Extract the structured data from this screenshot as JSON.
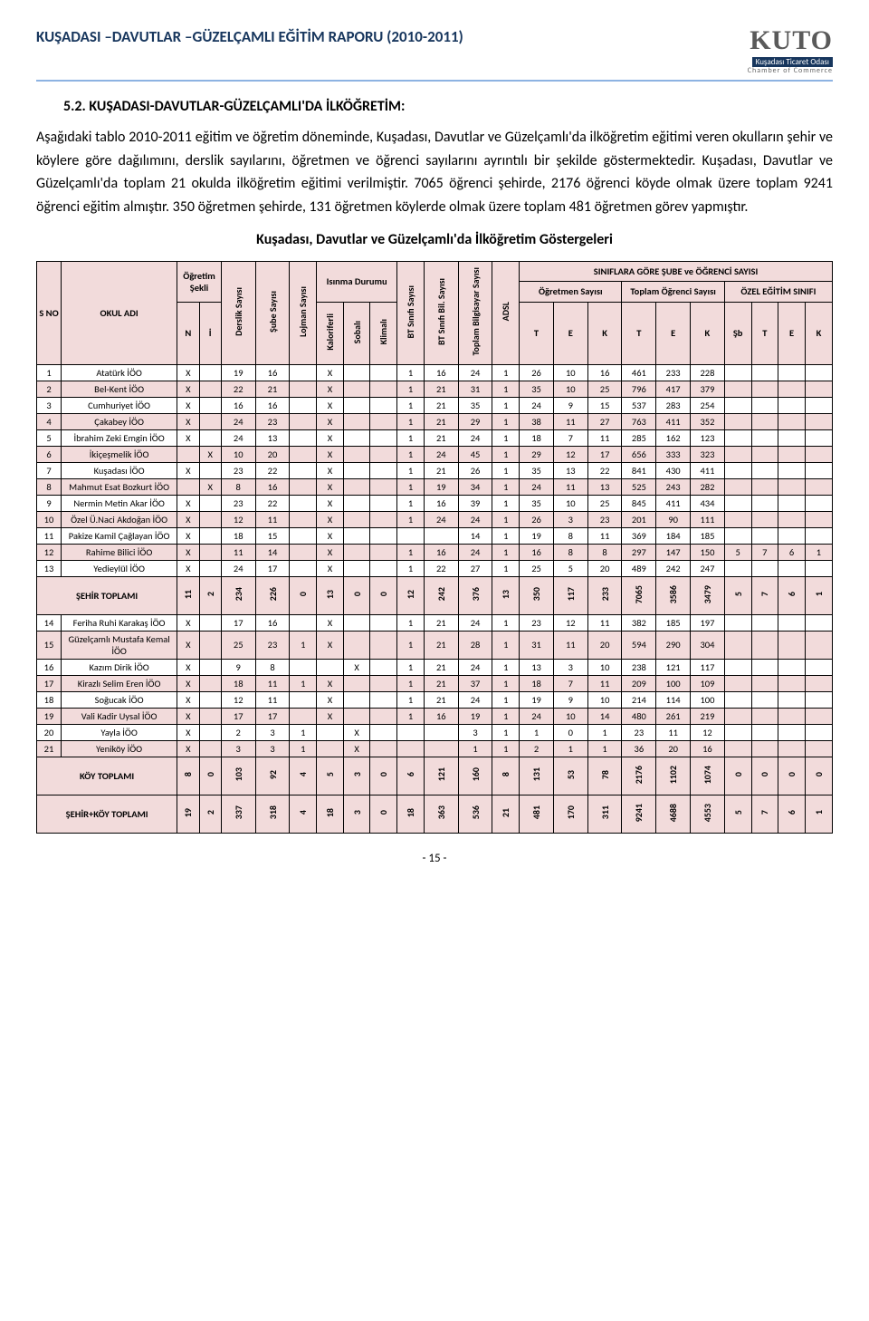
{
  "header": {
    "doc_title": "KUŞADASI –DAVUTLAR –GÜZELÇAMLI EĞİTİM RAPORU (2010-2011)",
    "logo_main": "KUTO",
    "logo_sub": "Kuşadası Ticaret Odası",
    "logo_sub2": "Chamber of Commerce",
    "title_color": "#17365d",
    "rule_color": "#8db3e2"
  },
  "section_heading": "5.2. KUŞADASI-DAVUTLAR-GÜZELÇAMLI'DA İLKÖĞRETİM:",
  "paragraphs": [
    "Aşağıdaki tablo 2010-2011 eğitim ve öğretim döneminde, Kuşadası, Davutlar ve Güzelçamlı'da ilköğretim eğitimi veren okulların şehir ve köylere göre dağılımını, derslik sayılarını, öğretmen ve öğrenci sayılarını ayrıntılı bir şekilde göstermektedir. Kuşadası, Davutlar ve Güzelçamlı'da toplam 21 okulda ilköğretim eğitimi verilmiştir. 7065 öğrenci şehirde, 2176 öğrenci köyde olmak üzere toplam 9241 öğrenci eğitim almıştır. 350 öğretmen şehirde, 131 öğretmen köylerde olmak üzere toplam 481 öğretmen görev yapmıştır."
  ],
  "chart_title": "Kuşadası, Davutlar ve Güzelçamlı'da İlköğretim Göstergeleri",
  "table": {
    "header_bg": "#f2dbdb",
    "pink_bg": "#f2dbdb",
    "top_headers": {
      "s_no": "S NO",
      "okul_adi": "OKUL ADI",
      "ogretim_sekli": "Öğretim Şekli",
      "derslik": "Derslik Sayısı",
      "sube": "Şube Sayısı",
      "lojman": "Lojman Sayısı",
      "isinma": "Isınma Durumu",
      "bt_sinifi": "BT Sınıfı Sayısı",
      "bt_bil": "BT Sınıfı Bil. Sayısı",
      "toplam_bilg": "Toplam Bilgisayar Sayısı",
      "adsl": "ADSL",
      "siniflara": "SINIFLARA GÖRE ŞUBE ve ÖĞRENCİ SAYISI",
      "ogretmen": "Öğretmen Sayısı",
      "toplam_ogr": "Toplam Öğrenci Sayısı",
      "ozel": "ÖZEL EĞİTİM SINIFI"
    },
    "sub_headers": {
      "N": "N",
      "I": "İ",
      "kaloriferli": "Kaloriferli",
      "sobali": "Sobalı",
      "klimali": "Klimalı",
      "T": "T",
      "E": "E",
      "K": "K",
      "Sb": "Şb"
    },
    "rows": [
      {
        "pink": false,
        "n": "1",
        "name": "Atatürk İÖO",
        "N": "X",
        "I": "",
        "d": "19",
        "s": "16",
        "l": "",
        "kf": "X",
        "so": "",
        "kl": "",
        "bt": "1",
        "btb": "16",
        "tb": "24",
        "ad": "1",
        "oT": "26",
        "oE": "10",
        "oK": "16",
        "tT": "461",
        "tE": "233",
        "tK": "228",
        "zSb": "",
        "zT": "",
        "zE": "",
        "zK": ""
      },
      {
        "pink": true,
        "n": "2",
        "name": "Bel-Kent İÖO",
        "N": "X",
        "I": "",
        "d": "22",
        "s": "21",
        "l": "",
        "kf": "X",
        "so": "",
        "kl": "",
        "bt": "1",
        "btb": "21",
        "tb": "31",
        "ad": "1",
        "oT": "35",
        "oE": "10",
        "oK": "25",
        "tT": "796",
        "tE": "417",
        "tK": "379",
        "zSb": "",
        "zT": "",
        "zE": "",
        "zK": ""
      },
      {
        "pink": false,
        "n": "3",
        "name": "Cumhuriyet İÖO",
        "N": "X",
        "I": "",
        "d": "16",
        "s": "16",
        "l": "",
        "kf": "X",
        "so": "",
        "kl": "",
        "bt": "1",
        "btb": "21",
        "tb": "35",
        "ad": "1",
        "oT": "24",
        "oE": "9",
        "oK": "15",
        "tT": "537",
        "tE": "283",
        "tK": "254",
        "zSb": "",
        "zT": "",
        "zE": "",
        "zK": ""
      },
      {
        "pink": true,
        "n": "4",
        "name": "Çakabey İÖO",
        "N": "X",
        "I": "",
        "d": "24",
        "s": "23",
        "l": "",
        "kf": "X",
        "so": "",
        "kl": "",
        "bt": "1",
        "btb": "21",
        "tb": "29",
        "ad": "1",
        "oT": "38",
        "oE": "11",
        "oK": "27",
        "tT": "763",
        "tE": "411",
        "tK": "352",
        "zSb": "",
        "zT": "",
        "zE": "",
        "zK": ""
      },
      {
        "pink": false,
        "n": "5",
        "name": "İbrahim Zeki Emgin İÖO",
        "N": "X",
        "I": "",
        "d": "24",
        "s": "13",
        "l": "",
        "kf": "X",
        "so": "",
        "kl": "",
        "bt": "1",
        "btb": "21",
        "tb": "24",
        "ad": "1",
        "oT": "18",
        "oE": "7",
        "oK": "11",
        "tT": "285",
        "tE": "162",
        "tK": "123",
        "zSb": "",
        "zT": "",
        "zE": "",
        "zK": ""
      },
      {
        "pink": true,
        "n": "6",
        "name": "İkiçeşmelik İÖO",
        "N": "",
        "I": "X",
        "d": "10",
        "s": "20",
        "l": "",
        "kf": "X",
        "so": "",
        "kl": "",
        "bt": "1",
        "btb": "24",
        "tb": "45",
        "ad": "1",
        "oT": "29",
        "oE": "12",
        "oK": "17",
        "tT": "656",
        "tE": "333",
        "tK": "323",
        "zSb": "",
        "zT": "",
        "zE": "",
        "zK": ""
      },
      {
        "pink": false,
        "n": "7",
        "name": "Kuşadası İÖO",
        "N": "X",
        "I": "",
        "d": "23",
        "s": "22",
        "l": "",
        "kf": "X",
        "so": "",
        "kl": "",
        "bt": "1",
        "btb": "21",
        "tb": "26",
        "ad": "1",
        "oT": "35",
        "oE": "13",
        "oK": "22",
        "tT": "841",
        "tE": "430",
        "tK": "411",
        "zSb": "",
        "zT": "",
        "zE": "",
        "zK": ""
      },
      {
        "pink": true,
        "n": "8",
        "name": "Mahmut Esat Bozkurt İÖO",
        "N": "",
        "I": "X",
        "d": "8",
        "s": "16",
        "l": "",
        "kf": "X",
        "so": "",
        "kl": "",
        "bt": "1",
        "btb": "19",
        "tb": "34",
        "ad": "1",
        "oT": "24",
        "oE": "11",
        "oK": "13",
        "tT": "525",
        "tE": "243",
        "tK": "282",
        "zSb": "",
        "zT": "",
        "zE": "",
        "zK": ""
      },
      {
        "pink": false,
        "n": "9",
        "name": "Nermin Metin Akar İÖO",
        "N": "X",
        "I": "",
        "d": "23",
        "s": "22",
        "l": "",
        "kf": "X",
        "so": "",
        "kl": "",
        "bt": "1",
        "btb": "16",
        "tb": "39",
        "ad": "1",
        "oT": "35",
        "oE": "10",
        "oK": "25",
        "tT": "845",
        "tE": "411",
        "tK": "434",
        "zSb": "",
        "zT": "",
        "zE": "",
        "zK": ""
      },
      {
        "pink": true,
        "n": "10",
        "name": "Özel Ü.Naci Akdoğan İÖO",
        "N": "X",
        "I": "",
        "d": "12",
        "s": "11",
        "l": "",
        "kf": "X",
        "so": "",
        "kl": "",
        "bt": "1",
        "btb": "24",
        "tb": "24",
        "ad": "1",
        "oT": "26",
        "oE": "3",
        "oK": "23",
        "tT": "201",
        "tE": "90",
        "tK": "111",
        "zSb": "",
        "zT": "",
        "zE": "",
        "zK": ""
      },
      {
        "pink": false,
        "n": "11",
        "name": "Pakize Kamil Çağlayan İÖO",
        "N": "X",
        "I": "",
        "d": "18",
        "s": "15",
        "l": "",
        "kf": "X",
        "so": "",
        "kl": "",
        "bt": "",
        "btb": "",
        "tb": "14",
        "ad": "1",
        "oT": "19",
        "oE": "8",
        "oK": "11",
        "tT": "369",
        "tE": "184",
        "tK": "185",
        "zSb": "",
        "zT": "",
        "zE": "",
        "zK": ""
      },
      {
        "pink": true,
        "n": "12",
        "name": "Rahime Bilici İÖO",
        "N": "X",
        "I": "",
        "d": "11",
        "s": "14",
        "l": "",
        "kf": "X",
        "so": "",
        "kl": "",
        "bt": "1",
        "btb": "16",
        "tb": "24",
        "ad": "1",
        "oT": "16",
        "oE": "8",
        "oK": "8",
        "tT": "297",
        "tE": "147",
        "tK": "150",
        "zSb": "5",
        "zT": "7",
        "zE": "6",
        "zK": "1"
      },
      {
        "pink": false,
        "n": "13",
        "name": "Yedieylül İÖO",
        "N": "X",
        "I": "",
        "d": "24",
        "s": "17",
        "l": "",
        "kf": "X",
        "so": "",
        "kl": "",
        "bt": "1",
        "btb": "22",
        "tb": "27",
        "ad": "1",
        "oT": "25",
        "oE": "5",
        "oK": "20",
        "tT": "489",
        "tE": "242",
        "tK": "247",
        "zSb": "",
        "zT": "",
        "zE": "",
        "zK": ""
      }
    ],
    "sehir_toplami": {
      "label": "ŞEHİR TOPLAMI",
      "N": "11",
      "I": "2",
      "d": "234",
      "s": "226",
      "l": "0",
      "kf": "13",
      "so": "0",
      "kl": "0",
      "bt": "12",
      "btb": "242",
      "tb": "376",
      "ad": "13",
      "oT": "350",
      "oE": "117",
      "oK": "233",
      "tT": "7065",
      "tE": "3586",
      "tK": "3479",
      "zSb": "5",
      "zT": "7",
      "zE": "6",
      "zK": "1"
    },
    "rows2": [
      {
        "pink": false,
        "n": "14",
        "name": "Feriha Ruhi Karakaş İÖO",
        "N": "X",
        "I": "",
        "d": "17",
        "s": "16",
        "l": "",
        "kf": "X",
        "so": "",
        "kl": "",
        "bt": "1",
        "btb": "21",
        "tb": "24",
        "ad": "1",
        "oT": "23",
        "oE": "12",
        "oK": "11",
        "tT": "382",
        "tE": "185",
        "tK": "197",
        "zSb": "",
        "zT": "",
        "zE": "",
        "zK": ""
      },
      {
        "pink": true,
        "n": "15",
        "name": "Güzelçamlı Mustafa Kemal İÖO",
        "N": "X",
        "I": "",
        "d": "25",
        "s": "23",
        "l": "1",
        "kf": "X",
        "so": "",
        "kl": "",
        "bt": "1",
        "btb": "21",
        "tb": "28",
        "ad": "1",
        "oT": "31",
        "oE": "11",
        "oK": "20",
        "tT": "594",
        "tE": "290",
        "tK": "304",
        "zSb": "",
        "zT": "",
        "zE": "",
        "zK": ""
      },
      {
        "pink": false,
        "n": "16",
        "name": "Kazım Dirik İÖO",
        "N": "X",
        "I": "",
        "d": "9",
        "s": "8",
        "l": "",
        "kf": "",
        "so": "X",
        "kl": "",
        "bt": "1",
        "btb": "21",
        "tb": "24",
        "ad": "1",
        "oT": "13",
        "oE": "3",
        "oK": "10",
        "tT": "238",
        "tE": "121",
        "tK": "117",
        "zSb": "",
        "zT": "",
        "zE": "",
        "zK": ""
      },
      {
        "pink": true,
        "n": "17",
        "name": "Kirazlı Selim Eren İÖO",
        "N": "X",
        "I": "",
        "d": "18",
        "s": "11",
        "l": "1",
        "kf": "X",
        "so": "",
        "kl": "",
        "bt": "1",
        "btb": "21",
        "tb": "37",
        "ad": "1",
        "oT": "18",
        "oE": "7",
        "oK": "11",
        "tT": "209",
        "tE": "100",
        "tK": "109",
        "zSb": "",
        "zT": "",
        "zE": "",
        "zK": ""
      },
      {
        "pink": false,
        "n": "18",
        "name": "Soğucak İÖO",
        "N": "X",
        "I": "",
        "d": "12",
        "s": "11",
        "l": "",
        "kf": "X",
        "so": "",
        "kl": "",
        "bt": "1",
        "btb": "21",
        "tb": "24",
        "ad": "1",
        "oT": "19",
        "oE": "9",
        "oK": "10",
        "tT": "214",
        "tE": "114",
        "tK": "100",
        "zSb": "",
        "zT": "",
        "zE": "",
        "zK": ""
      },
      {
        "pink": true,
        "n": "19",
        "name": "Vali Kadir Uysal İÖO",
        "N": "X",
        "I": "",
        "d": "17",
        "s": "17",
        "l": "",
        "kf": "X",
        "so": "",
        "kl": "",
        "bt": "1",
        "btb": "16",
        "tb": "19",
        "ad": "1",
        "oT": "24",
        "oE": "10",
        "oK": "14",
        "tT": "480",
        "tE": "261",
        "tK": "219",
        "zSb": "",
        "zT": "",
        "zE": "",
        "zK": ""
      },
      {
        "pink": false,
        "n": "20",
        "name": "Yayla İÖO",
        "N": "X",
        "I": "",
        "d": "2",
        "s": "3",
        "l": "1",
        "kf": "",
        "so": "X",
        "kl": "",
        "bt": "",
        "btb": "",
        "tb": "3",
        "ad": "1",
        "oT": "1",
        "oE": "0",
        "oK": "1",
        "tT": "23",
        "tE": "11",
        "tK": "12",
        "zSb": "",
        "zT": "",
        "zE": "",
        "zK": ""
      },
      {
        "pink": true,
        "n": "21",
        "name": "Yeniköy İÖO",
        "N": "X",
        "I": "",
        "d": "3",
        "s": "3",
        "l": "1",
        "kf": "",
        "so": "X",
        "kl": "",
        "bt": "",
        "btb": "",
        "tb": "1",
        "ad": "1",
        "oT": "2",
        "oE": "1",
        "oK": "1",
        "tT": "36",
        "tE": "20",
        "tK": "16",
        "zSb": "",
        "zT": "",
        "zE": "",
        "zK": ""
      }
    ],
    "koy_toplami": {
      "label": "KÖY TOPLAMI",
      "N": "8",
      "I": "0",
      "d": "103",
      "s": "92",
      "l": "4",
      "kf": "5",
      "so": "3",
      "kl": "0",
      "bt": "6",
      "btb": "121",
      "tb": "160",
      "ad": "8",
      "oT": "131",
      "oE": "53",
      "oK": "78",
      "tT": "2176",
      "tE": "1102",
      "tK": "1074",
      "zSb": "0",
      "zT": "0",
      "zE": "0",
      "zK": "0"
    },
    "grand_toplami": {
      "label": "ŞEHİR+KÖY TOPLAMI",
      "N": "19",
      "I": "2",
      "d": "337",
      "s": "318",
      "l": "4",
      "kf": "18",
      "so": "3",
      "kl": "0",
      "bt": "18",
      "btb": "363",
      "tb": "536",
      "ad": "21",
      "oT": "481",
      "oE": "170",
      "oK": "311",
      "tT": "9241",
      "tE": "4688",
      "tK": "4553",
      "zSb": "5",
      "zT": "7",
      "zE": "6",
      "zK": "1"
    }
  },
  "page_num": "- 15 -"
}
